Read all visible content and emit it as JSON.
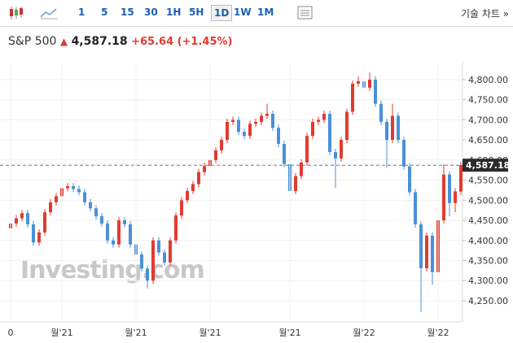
{
  "toolbar": {
    "intervals": [
      "1",
      "5",
      "15",
      "30",
      "1H",
      "5H",
      "1D",
      "1W",
      "1M"
    ],
    "selected": 6,
    "tech_chart": "기술 차트 »"
  },
  "header": {
    "name": "S&P 500",
    "price": "4,587.18",
    "change": "+65.64",
    "percent": "(+1.45%)"
  },
  "chart_data": {
    "type": "candlestick",
    "watermark": "Investing.com",
    "up_color": "#e03c31",
    "down_color": "#4a90d9",
    "categories": [
      "0",
      null,
      null,
      null,
      null,
      null,
      null,
      null,
      null,
      "월'21",
      null,
      null,
      null,
      null,
      null,
      null,
      null,
      null,
      null,
      null,
      null,
      null,
      "월'21",
      null,
      null,
      null,
      null,
      null,
      null,
      null,
      null,
      null,
      null,
      null,
      null,
      "월'21",
      null,
      null,
      null,
      null,
      null,
      null,
      null,
      null,
      null,
      null,
      null,
      null,
      null,
      "월'21",
      null,
      null,
      null,
      null,
      null,
      null,
      null,
      null,
      null,
      null,
      null,
      null,
      "월'22",
      null,
      null,
      null,
      null,
      null,
      null,
      null,
      null,
      null,
      null,
      null,
      null,
      "월'22",
      null,
      null,
      null,
      null
    ],
    "open": [
      4430,
      4442,
      4455,
      4468,
      4440,
      4395,
      4420,
      4470,
      4495,
      4510,
      4530,
      4535,
      4528,
      4520,
      4495,
      4480,
      4460,
      4442,
      4400,
      4390,
      4450,
      4440,
      4390,
      4365,
      4330,
      4300,
      4400,
      4370,
      4345,
      4400,
      4462,
      4500,
      4523,
      4540,
      4570,
      4585,
      4600,
      4624,
      4650,
      4695,
      4700,
      4670,
      4660,
      4690,
      4695,
      4710,
      4715,
      4680,
      4640,
      4590,
      4523,
      4560,
      4594,
      4660,
      4695,
      4700,
      4715,
      4620,
      4604,
      4650,
      4720,
      4790,
      4796,
      4780,
      4800,
      4740,
      4695,
      4650,
      4710,
      4650,
      4584,
      4520,
      4440,
      4331,
      4412,
      4321,
      4450,
      4564,
      4493,
      4521.54
    ],
    "high": [
      4450,
      4463,
      4476,
      4476,
      4448,
      4428,
      4478,
      4503,
      4518,
      4538,
      4543,
      4543,
      4536,
      4528,
      4503,
      4488,
      4468,
      4450,
      4408,
      4458,
      4458,
      4448,
      4398,
      4373,
      4338,
      4408,
      4408,
      4378,
      4408,
      4470,
      4508,
      4531,
      4548,
      4578,
      4593,
      4608,
      4632,
      4658,
      4703,
      4708,
      4708,
      4678,
      4698,
      4703,
      4718,
      4740,
      4723,
      4688,
      4648,
      4598,
      4568,
      4602,
      4668,
      4703,
      4708,
      4723,
      4723,
      4628,
      4658,
      4728,
      4798,
      4808,
      4804,
      4818,
      4808,
      4748,
      4703,
      4740,
      4718,
      4658,
      4592,
      4528,
      4448,
      4420,
      4420,
      4458,
      4590,
      4572,
      4530,
      4595
    ],
    "low": [
      4422,
      4434,
      4447,
      4432,
      4387,
      4387,
      4412,
      4462,
      4487,
      4502,
      4522,
      4520,
      4512,
      4487,
      4472,
      4452,
      4434,
      4392,
      4382,
      4382,
      4432,
      4382,
      4357,
      4322,
      4280,
      4292,
      4362,
      4337,
      4337,
      4392,
      4454,
      4492,
      4515,
      4532,
      4562,
      4577,
      4592,
      4616,
      4642,
      4687,
      4662,
      4652,
      4652,
      4682,
      4687,
      4702,
      4672,
      4632,
      4582,
      4500,
      4515,
      4552,
      4586,
      4652,
      4687,
      4692,
      4612,
      4530,
      4596,
      4642,
      4712,
      4782,
      4772,
      4772,
      4732,
      4687,
      4580,
      4642,
      4642,
      4576,
      4512,
      4432,
      4222,
      4323,
      4290,
      4313,
      4442,
      4460,
      4470,
      4513
    ],
    "close": [
      4442,
      4455,
      4468,
      4440,
      4395,
      4420,
      4470,
      4495,
      4510,
      4530,
      4535,
      4528,
      4520,
      4495,
      4480,
      4460,
      4442,
      4400,
      4390,
      4450,
      4440,
      4390,
      4365,
      4330,
      4300,
      4400,
      4370,
      4345,
      4400,
      4462,
      4500,
      4523,
      4540,
      4570,
      4585,
      4600,
      4624,
      4650,
      4695,
      4700,
      4670,
      4660,
      4690,
      4695,
      4710,
      4715,
      4680,
      4640,
      4590,
      4523,
      4560,
      4594,
      4660,
      4695,
      4700,
      4715,
      4620,
      4604,
      4650,
      4720,
      4790,
      4796,
      4780,
      4800,
      4740,
      4695,
      4650,
      4710,
      4650,
      4584,
      4520,
      4440,
      4331,
      4412,
      4321,
      4450,
      4564,
      4493,
      4522,
      4587.18
    ],
    "price_line": {
      "value": 4587.18,
      "label": "4,587.18"
    },
    "ylim": [
      4200,
      4840
    ],
    "yticks": [
      {
        "value": 4250,
        "label": "4,250.00"
      },
      {
        "value": 4300,
        "label": "4,300.00"
      },
      {
        "value": 4350,
        "label": "4,350.00"
      },
      {
        "value": 4400,
        "label": "4,400.00"
      },
      {
        "value": 4450,
        "label": "4,450.00"
      },
      {
        "value": 4500,
        "label": "4,500.00"
      },
      {
        "value": 4550,
        "label": "4,550.00"
      },
      {
        "value": 4600,
        "label": "4,600.00"
      },
      {
        "value": 4650,
        "label": "4,650.00"
      },
      {
        "value": 4700,
        "label": "4,700.00"
      },
      {
        "value": 4750,
        "label": "4,750.00"
      },
      {
        "value": 4800,
        "label": "4,800.00"
      }
    ],
    "grid": true
  }
}
